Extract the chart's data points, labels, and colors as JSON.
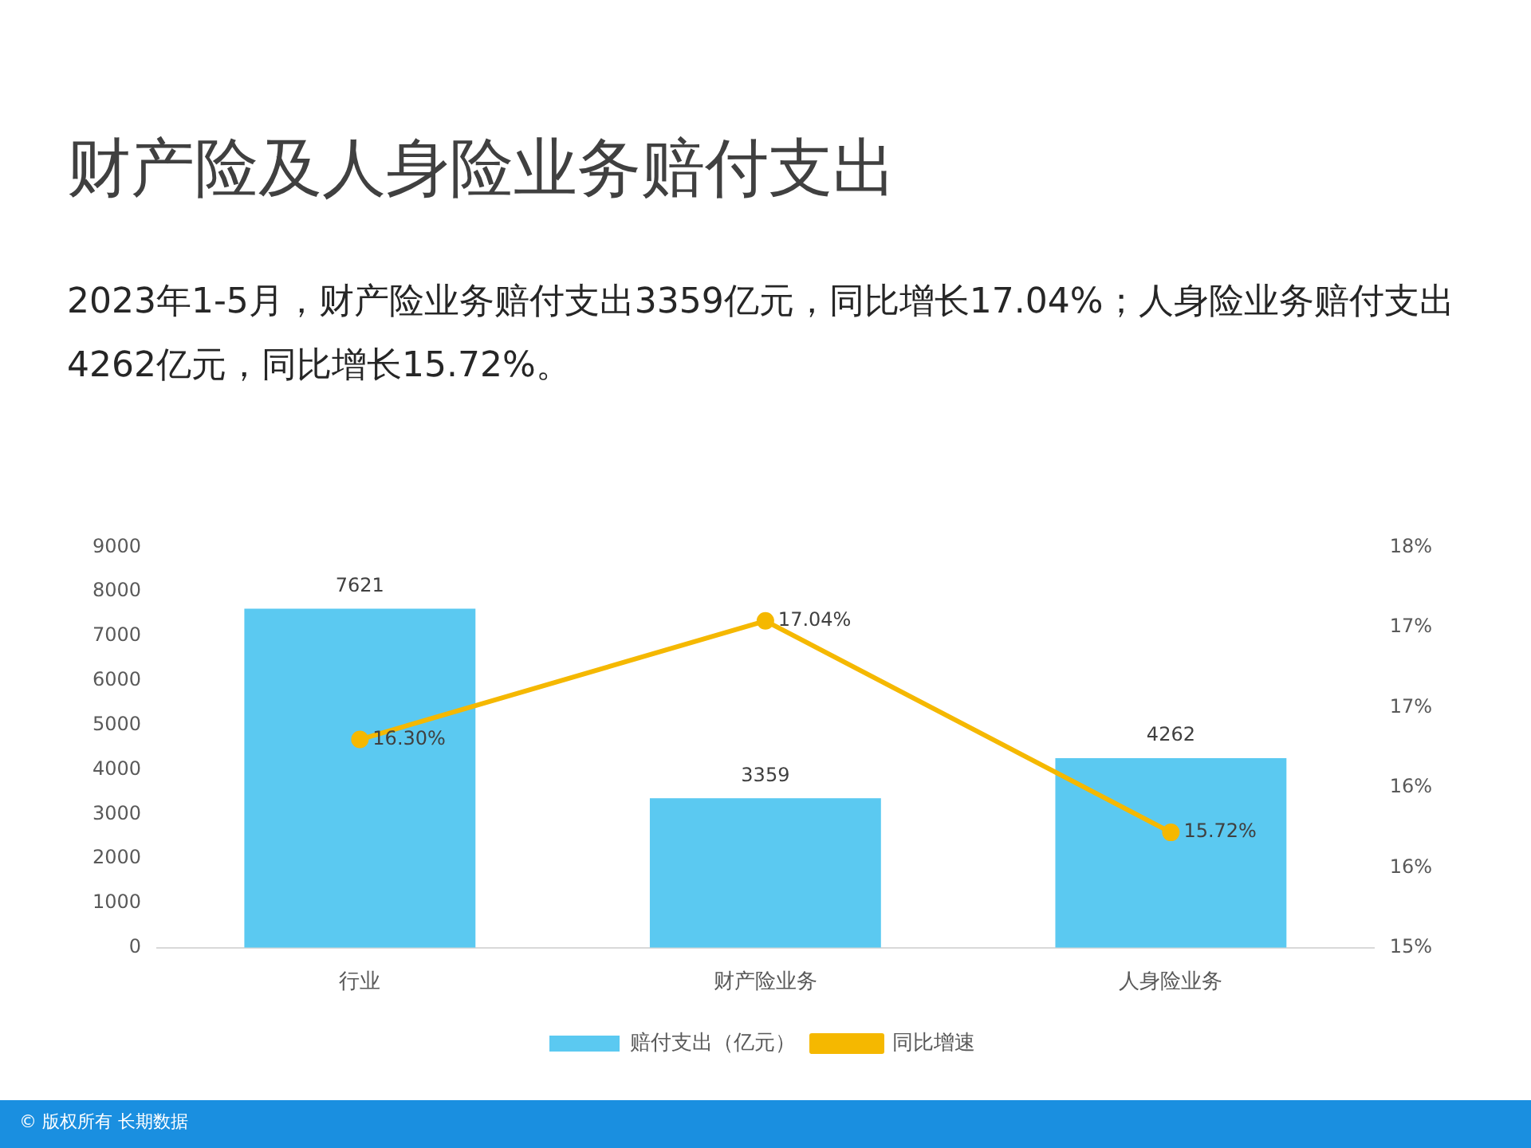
{
  "chart_data": {
    "type": "bar",
    "title": "财产险及人身险业务赔付支出",
    "subtitle": "2023年1-5月，财产险业务赔付支出3359亿元，同比增长17.04%；人身险业务赔付支出4262亿元，同比增长15.72%。",
    "categories": [
      "行业",
      "财产险业务",
      "人身险业务"
    ],
    "series": [
      {
        "name": "赔付支出（亿元）",
        "color": "#5bc9f1",
        "values": [
          7621,
          3359,
          4262
        ],
        "value_labels": [
          "7621",
          "3359",
          "4262"
        ]
      },
      {
        "name": "同比增速",
        "type": "line",
        "axis": "y2",
        "color": "#f5b800",
        "marker": "circle",
        "values": [
          16.3,
          17.04,
          15.72
        ],
        "value_labels": [
          "16.30%",
          "17.04%",
          "15.72%"
        ]
      }
    ],
    "ylim": [
      0,
      9000
    ],
    "yticks": [
      0,
      1000,
      2000,
      3000,
      4000,
      5000,
      6000,
      7000,
      8000,
      9000
    ],
    "y2lim": [
      15,
      17.5
    ],
    "y2ticks": [
      {
        "value": 15,
        "label": "15%"
      },
      {
        "value": 15.5,
        "label": "16%"
      },
      {
        "value": 16,
        "label": "16%"
      },
      {
        "value": 16.5,
        "label": "17%"
      },
      {
        "value": 17,
        "label": "17%"
      },
      {
        "value": 17.5,
        "label": "18%"
      }
    ],
    "grid": false,
    "legend": "bottom",
    "annotations": [
      "© 版权所有 长期数据"
    ]
  }
}
